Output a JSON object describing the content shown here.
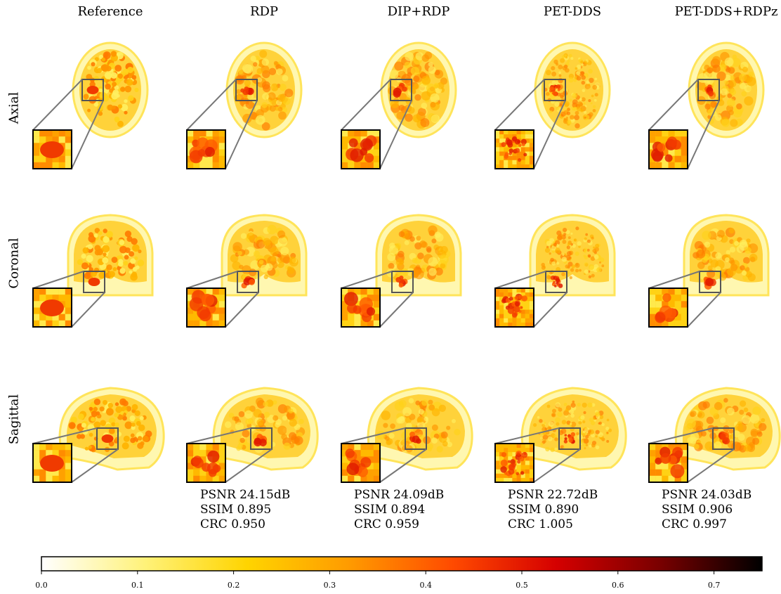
{
  "columns": [
    "Reference",
    "RDP",
    "DIP+RDP",
    "PET-DDS",
    "PET-DDS+RDPz"
  ],
  "rows": [
    "Axial",
    "Coronal",
    "Sagittal"
  ],
  "metrics": [
    {
      "method": "RDP",
      "psnr": "PSNR 24.15dB",
      "ssim": "SSIM 0.895",
      "crc": "CRC 0.950"
    },
    {
      "method": "DIP+RDP",
      "psnr": "PSNR 24.09dB",
      "ssim": "SSIM 0.894",
      "crc": "CRC 0.959"
    },
    {
      "method": "PET-DDS",
      "psnr": "PSNR 22.72dB",
      "ssim": "SSIM 0.890",
      "crc": "CRC 1.005"
    },
    {
      "method": "PET-DDS+RDPz",
      "psnr": "PSNR 24.03dB",
      "ssim": "SSIM 0.906",
      "crc": "CRC 0.997"
    }
  ],
  "colorbar": {
    "ticks": [
      "0.0",
      "0.1",
      "0.2",
      "0.3",
      "0.4",
      "0.5",
      "0.6",
      "0.7"
    ],
    "min": 0.0,
    "max": 0.75,
    "colormap": [
      "#ffffff",
      "#fff27a",
      "#ffd400",
      "#ff9a00",
      "#ff4a00",
      "#d50000",
      "#7a0000",
      "#000000"
    ]
  }
}
